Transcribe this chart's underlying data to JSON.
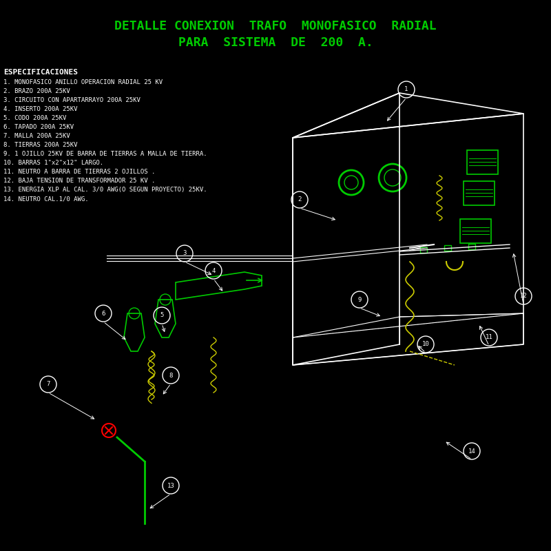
{
  "background_color": "#000000",
  "title_line1": "DETALLE CONEXION  TRAFO  MONOFASICO  RADIAL",
  "title_line2": "PARA  SISTEMA  DE  200  A.",
  "title_color": "#00cc00",
  "title_fontsize": 13,
  "spec_title": "ESPECIFICACIONES",
  "spec_title_color": "#ffffff",
  "spec_lines": [
    "1. MONOFASICO ANILLO OPERACION RADIAL 25 KV",
    "2. BRAZO 200A 25KV",
    "3. CIRCUITO CON APARTARRAYO 200A 25KV",
    "4. INSERTO 200A 25KV",
    "5. CODO 200A 25KV",
    "6. TAPADO 200A 25KV",
    "7. MALLA 200A 25KV",
    "8. TIERRAS 200A 25KV",
    "9. 1 OJILLO 25KV DE BARRA DE TIERRAS A MALLA DE TIERRA.",
    "10. BARRAS 1\"x2\"x12\" LARGO.",
    "11. NEUTRO A BARRA DE TIERRAS 2 OJILLOS .",
    "12. BAJA TENSION DE TRANSFORMADOR 25 KV .",
    "13. ENERGIA XLP AL CAL. 3/0 AWG(O SEGUN PROYECTO) 25KV.",
    "14. NEUTRO CAL.1/0 AWG."
  ],
  "spec_color": "#ffffff",
  "spec_fontsize": 6.5,
  "green_color": "#00cc00",
  "yellow_color": "#cccc00",
  "white_color": "#ffffff",
  "label_color": "#ffffff",
  "box_color": "#ffffff",
  "label_fontsize": 8
}
